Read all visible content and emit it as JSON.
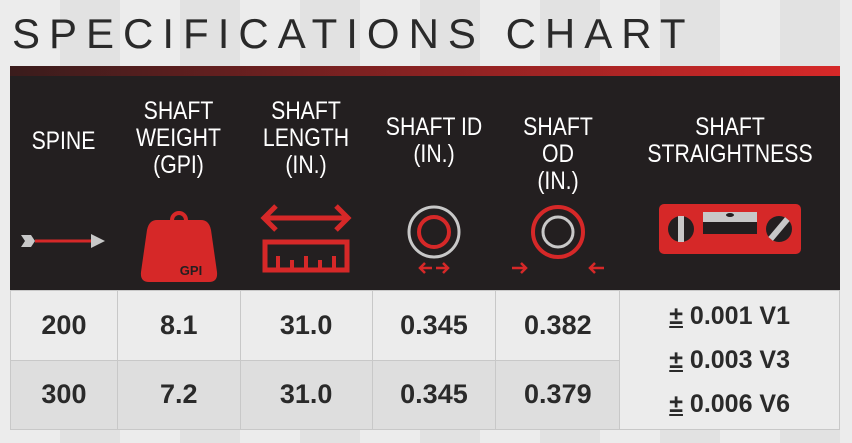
{
  "title": "SPECIFICATIONS CHART",
  "colors": {
    "header_bg": "#231f20",
    "accent": "#d62828",
    "icon_gray": "#c8c8c8"
  },
  "columns": [
    {
      "label": "SPINE",
      "icon": "arrow-icon"
    },
    {
      "label": "SHAFT\nWEIGHT\n(GPI)",
      "icon": "weight-icon",
      "icon_text": "GPI"
    },
    {
      "label": "SHAFT\nLENGTH\n(IN.)",
      "icon": "ruler-length-icon"
    },
    {
      "label": "SHAFT ID\n(IN.)",
      "icon": "inner-diameter-icon"
    },
    {
      "label": "SHAFT OD\n(IN.)",
      "icon": "outer-diameter-icon"
    },
    {
      "label": "SHAFT\nSTRAIGHTNESS",
      "icon": "level-icon"
    }
  ],
  "rows": [
    {
      "spine": "200",
      "weight": "8.1",
      "length": "31.0",
      "id": "0.345",
      "od": "0.382"
    },
    {
      "spine": "300",
      "weight": "7.2",
      "length": "31.0",
      "id": "0.345",
      "od": "0.379"
    }
  ],
  "straightness": [
    {
      "sign": "±",
      "value": "0.001 V1"
    },
    {
      "sign": "±",
      "value": "0.003 V3"
    },
    {
      "sign": "±",
      "value": "0.006 V6"
    }
  ]
}
